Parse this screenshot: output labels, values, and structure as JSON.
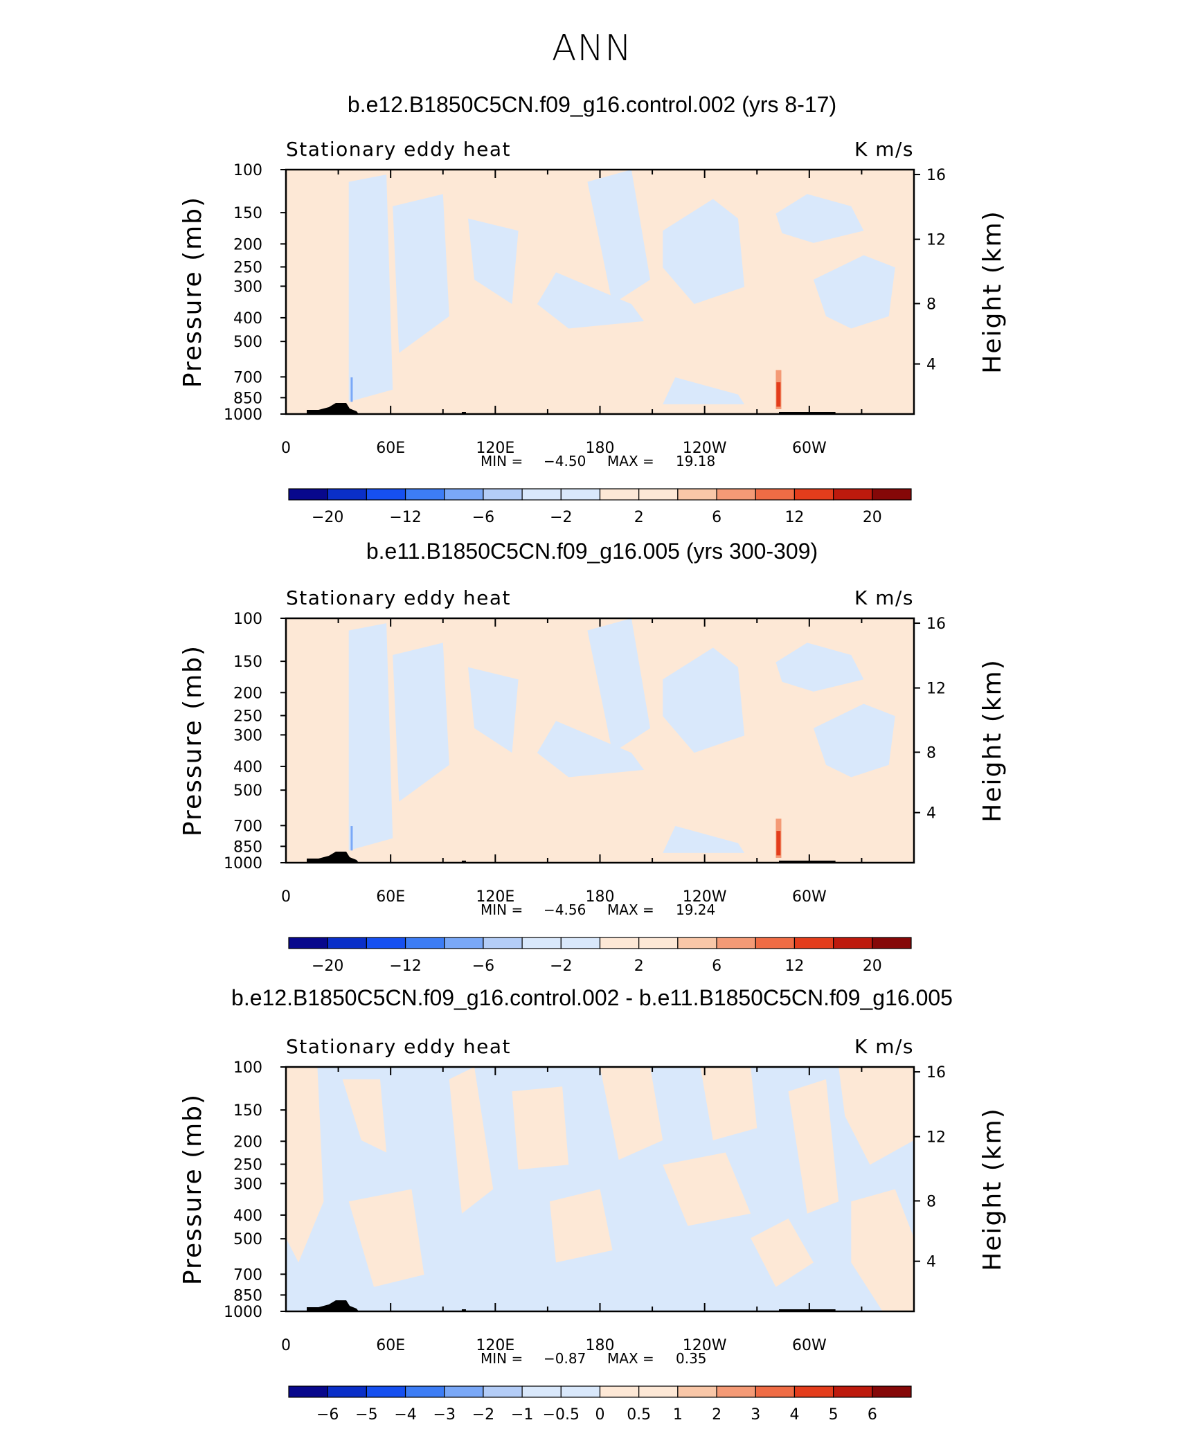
{
  "page": {
    "title": "ANN"
  },
  "palette": {
    "colors": [
      "#08088c",
      "#0a2fc8",
      "#1650f0",
      "#3d7df5",
      "#7aa8f7",
      "#b4cdf7",
      "#d9e8fb",
      "#fde8d6",
      "#f9c7a8",
      "#f49a76",
      "#ef6c45",
      "#e33d1c",
      "#bd1a0d",
      "#850808"
    ]
  },
  "chart_data": [
    {
      "type": "heatmap",
      "title": "b.e12.B1850C5CN.f09_g16.control.002 (yrs 8-17)",
      "left_label": "Stationary eddy heat",
      "right_label": "K m/s",
      "ylabel": "Pressure (mb)",
      "ylabel_right": "Height (km)",
      "pressure_ticks": [
        "100",
        "150",
        "200",
        "250",
        "300",
        "400",
        "500",
        "700",
        "850",
        "1000"
      ],
      "height_ticks": [
        "16",
        "12",
        "8",
        "4"
      ],
      "x_ticks": [
        "0",
        "60E",
        "120E",
        "180",
        "120W",
        "60W"
      ],
      "min_label": "MIN =",
      "min_value": "-4.50",
      "max_label": "MAX =",
      "max_value": "19.18",
      "colorbar_labels": [
        "−20",
        "−12",
        "−6",
        "−2",
        "2",
        "6",
        "12",
        "20"
      ]
    },
    {
      "type": "heatmap",
      "title": "b.e11.B1850C5CN.f09_g16.005 (yrs 300-309)",
      "left_label": "Stationary eddy heat",
      "right_label": "K m/s",
      "ylabel": "Pressure (mb)",
      "ylabel_right": "Height (km)",
      "pressure_ticks": [
        "100",
        "150",
        "200",
        "250",
        "300",
        "400",
        "500",
        "700",
        "850",
        "1000"
      ],
      "height_ticks": [
        "16",
        "12",
        "8",
        "4"
      ],
      "x_ticks": [
        "0",
        "60E",
        "120E",
        "180",
        "120W",
        "60W"
      ],
      "min_label": "MIN =",
      "min_value": "-4.56",
      "max_label": "MAX =",
      "max_value": "19.24",
      "colorbar_labels": [
        "−20",
        "−12",
        "−6",
        "−2",
        "2",
        "6",
        "12",
        "20"
      ]
    },
    {
      "type": "heatmap",
      "title": "b.e12.B1850C5CN.f09_g16.control.002 - b.e11.B1850C5CN.f09_g16.005",
      "left_label": "Stationary eddy heat",
      "right_label": "K m/s",
      "ylabel": "Pressure (mb)",
      "ylabel_right": "Height (km)",
      "pressure_ticks": [
        "100",
        "150",
        "200",
        "250",
        "300",
        "400",
        "500",
        "700",
        "850",
        "1000"
      ],
      "height_ticks": [
        "16",
        "12",
        "8",
        "4"
      ],
      "x_ticks": [
        "0",
        "60E",
        "120E",
        "180",
        "120W",
        "60W"
      ],
      "min_label": "MIN =",
      "min_value": "-0.87",
      "max_label": "MAX =",
      "max_value": "0.35",
      "colorbar_labels": [
        "−6",
        "−5",
        "−4",
        "−3",
        "−2",
        "−1",
        "−0.5",
        "0",
        "0.5",
        "1",
        "2",
        "3",
        "4",
        "5",
        "6"
      ]
    }
  ]
}
